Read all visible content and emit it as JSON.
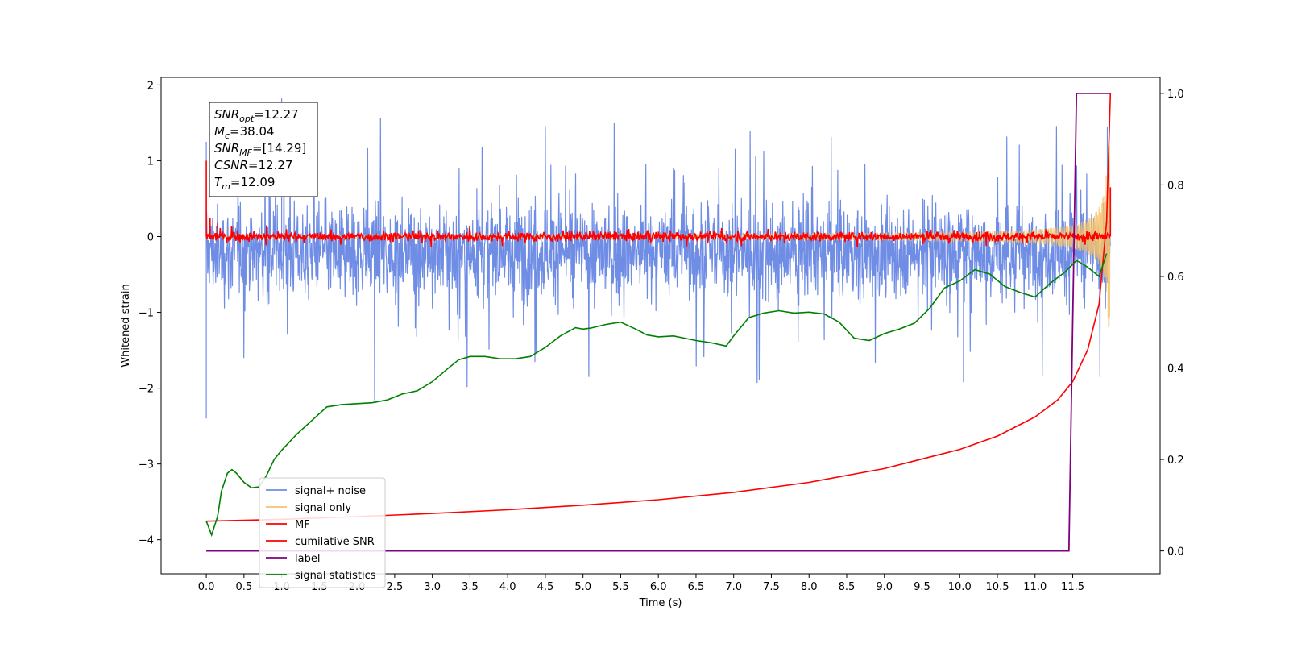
{
  "chart_data": {
    "type": "line",
    "xlabel": "Time (s)",
    "ylabel": "Whitened strain",
    "ylabel_right": "",
    "xlim": [
      -0.6,
      12.66
    ],
    "ylim": [
      -4.45,
      2.1
    ],
    "ylim_right": [
      -0.05,
      1.035
    ],
    "x_ticks": [
      0.0,
      0.5,
      1.0,
      1.5,
      2.0,
      2.5,
      3.0,
      3.5,
      4.0,
      4.5,
      5.0,
      5.5,
      6.0,
      6.5,
      7.0,
      7.5,
      8.0,
      8.5,
      9.0,
      9.5,
      10.0,
      10.5,
      11.0,
      11.5
    ],
    "x_tick_labels": [
      "0.0",
      "0.5",
      "1.0",
      "1.5",
      "2.0",
      "2.5",
      "3.0",
      "3.5",
      "4.0",
      "4.5",
      "5.0",
      "5.5",
      "6.0",
      "6.5",
      "7.0",
      "7.5",
      "8.0",
      "8.5",
      "9.0",
      "9.5",
      "10.0",
      "10.5",
      "11.0",
      "11.5"
    ],
    "y_ticks": [
      2,
      1,
      0,
      -1,
      -2,
      -3,
      -4
    ],
    "y_tick_labels": [
      "2",
      "1",
      "0",
      "−1",
      "−2",
      "−3",
      "−4"
    ],
    "y_right_ticks": [
      1.0,
      0.8,
      0.6,
      0.4,
      0.2,
      0.0
    ],
    "y_right_tick_labels": [
      "1.0",
      "0.8",
      "0.6",
      "0.4",
      "0.2",
      "0.0"
    ],
    "annotation": {
      "lines": [
        {
          "sym": "SNR",
          "sub": "opt",
          "value": "=12.27"
        },
        {
          "sym": "M",
          "sub": "c",
          "value": "=38.04"
        },
        {
          "sym": "SNR",
          "sub": "MF",
          "value": "=[14.29]"
        },
        {
          "sym": "CSNR",
          "sub": "",
          "value": "=12.27"
        },
        {
          "sym": "T",
          "sub": "m",
          "value": "=12.09"
        }
      ]
    },
    "legend": {
      "position": "lower-left",
      "entries": [
        {
          "label": "signal+ noise",
          "color": "#6f8de5"
        },
        {
          "label": "signal only",
          "color": "#f5c26b"
        },
        {
          "label": "MF",
          "color": "#ff0000"
        },
        {
          "label": "cumilative SNR",
          "color": "#ff0000"
        },
        {
          "label": "label",
          "color": "#800080"
        },
        {
          "label": "signal statistics",
          "color": "#008000"
        }
      ]
    },
    "series": [
      {
        "name": "signal+ noise",
        "axis": "left",
        "color": "#6f8de5",
        "style": "noise",
        "x_range": [
          0.0,
          12.0
        ],
        "envelope_mean": -0.2,
        "envelope_amplitude": 0.75,
        "notable_points": [
          [
            0.0,
            -2.4
          ],
          [
            0.0,
            1.25
          ],
          [
            1.0,
            1.82
          ],
          [
            10.05,
            -1.92
          ],
          [
            11.96,
            1.45
          ]
        ]
      },
      {
        "name": "signal only",
        "axis": "left",
        "color": "#f5c26b",
        "style": "chirp",
        "x_range": [
          0.0,
          12.0
        ],
        "start_amplitude": 0.02,
        "end_amplitude": 1.2
      },
      {
        "name": "MF",
        "axis": "left",
        "color": "#ff0000",
        "style": "noise",
        "x_range": [
          0.0,
          12.0
        ],
        "envelope_mean": 0.0,
        "envelope_amplitude": 0.08,
        "notable_points": [
          [
            0.0,
            1.0
          ],
          [
            0.05,
            0.25
          ],
          [
            0.15,
            0.18
          ],
          [
            12.0,
            0.65
          ]
        ]
      },
      {
        "name": "cumilative SNR",
        "axis": "right",
        "color": "#ff0000",
        "x": [
          0.0,
          1.0,
          2.0,
          3.0,
          4.0,
          5.0,
          6.0,
          7.0,
          8.0,
          9.0,
          10.0,
          10.5,
          11.0,
          11.3,
          11.5,
          11.7,
          11.85,
          11.95,
          12.0
        ],
        "y": [
          0.065,
          0.069,
          0.075,
          0.082,
          0.09,
          0.1,
          0.112,
          0.128,
          0.15,
          0.18,
          0.222,
          0.251,
          0.293,
          0.33,
          0.37,
          0.44,
          0.54,
          0.72,
          1.0
        ]
      },
      {
        "name": "label",
        "axis": "right",
        "color": "#800080",
        "x": [
          0.0,
          11.45,
          11.55,
          12.0
        ],
        "y": [
          0.0,
          0.0,
          1.0,
          1.0
        ]
      },
      {
        "name": "signal statistics",
        "axis": "right",
        "color": "#008000",
        "x": [
          0.0,
          0.07,
          0.15,
          0.2,
          0.28,
          0.34,
          0.4,
          0.5,
          0.6,
          0.7,
          0.8,
          0.9,
          1.0,
          1.2,
          1.4,
          1.6,
          1.8,
          2.0,
          2.2,
          2.4,
          2.6,
          2.8,
          3.0,
          3.2,
          3.35,
          3.5,
          3.7,
          3.9,
          4.1,
          4.3,
          4.5,
          4.7,
          4.9,
          5.0,
          5.1,
          5.3,
          5.5,
          5.7,
          5.85,
          6.0,
          6.2,
          6.35,
          6.5,
          6.7,
          6.9,
          7.0,
          7.2,
          7.4,
          7.6,
          7.8,
          8.0,
          8.2,
          8.4,
          8.6,
          8.8,
          9.0,
          9.2,
          9.4,
          9.6,
          9.8,
          10.0,
          10.2,
          10.4,
          10.6,
          10.8,
          11.0,
          11.2,
          11.4,
          11.55,
          11.7,
          11.85,
          11.95
        ],
        "y": [
          0.065,
          0.035,
          0.075,
          0.13,
          0.17,
          0.178,
          0.17,
          0.15,
          0.138,
          0.14,
          0.165,
          0.2,
          0.22,
          0.255,
          0.285,
          0.315,
          0.32,
          0.322,
          0.324,
          0.33,
          0.343,
          0.35,
          0.37,
          0.398,
          0.418,
          0.425,
          0.425,
          0.42,
          0.42,
          0.425,
          0.445,
          0.47,
          0.488,
          0.485,
          0.487,
          0.495,
          0.5,
          0.485,
          0.472,
          0.468,
          0.47,
          0.465,
          0.46,
          0.455,
          0.448,
          0.47,
          0.51,
          0.52,
          0.525,
          0.52,
          0.522,
          0.518,
          0.5,
          0.465,
          0.46,
          0.475,
          0.485,
          0.498,
          0.53,
          0.575,
          0.59,
          0.615,
          0.605,
          0.578,
          0.565,
          0.555,
          0.585,
          0.61,
          0.635,
          0.62,
          0.6,
          0.65
        ]
      }
    ]
  }
}
